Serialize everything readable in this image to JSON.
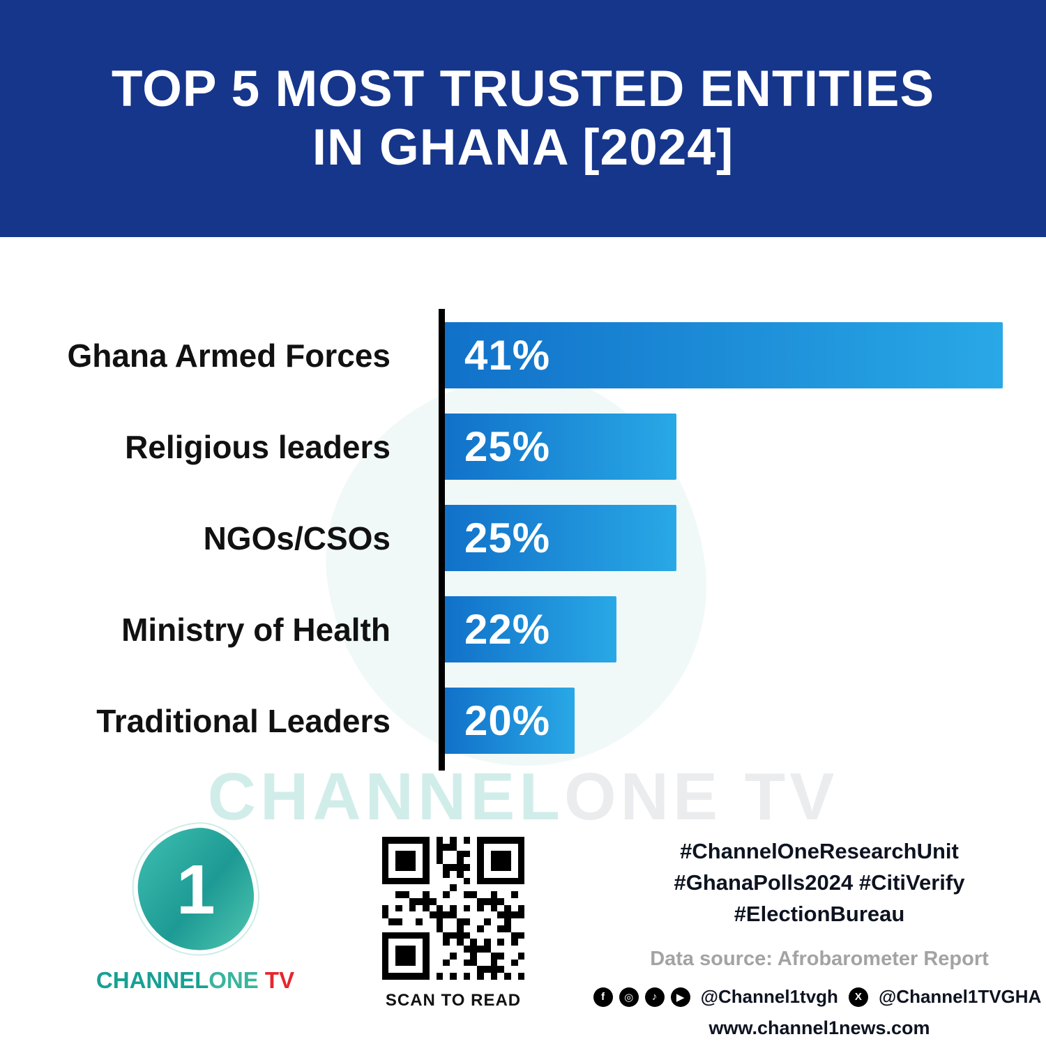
{
  "header": {
    "title_line1": "TOP 5 MOST TRUSTED ENTITIES",
    "title_line2": "IN GHANA [2024]"
  },
  "chart_data": {
    "type": "bar",
    "orientation": "horizontal",
    "title": "TOP 5 MOST TRUSTED ENTITIES IN GHANA [2024]",
    "categories": [
      "Ghana Armed Forces",
      "Religious leaders",
      "NGOs/CSOs",
      "Ministry of Health",
      "Traditional Leaders"
    ],
    "values": [
      41,
      25,
      25,
      22,
      20
    ],
    "value_labels": [
      "41%",
      "25%",
      "25%",
      "22%",
      "20%"
    ],
    "display_widths_pct": [
      100,
      41.5,
      41.5,
      30.7,
      23.3
    ],
    "bar_gradient": [
      "#1171c9",
      "#29a8e6"
    ],
    "xlabel": "",
    "ylabel": "",
    "grid": false,
    "legend": false,
    "axis_color": "#000000"
  },
  "watermark": {
    "part1": "CHANNEL",
    "part2": "ONE TV"
  },
  "footer": {
    "logo": {
      "numeral": "1",
      "word_channel": "CHANNEL",
      "word_one": "ONE",
      "word_tv": " TV"
    },
    "qr_caption": "SCAN TO READ",
    "hashtags": [
      "#ChannelOneResearchUnit",
      "#GhanaPolls2024 #CitiVerify",
      "#ElectionBureau"
    ],
    "data_source": "Data source: Afrobarometer Report",
    "social_icons": [
      {
        "name": "facebook-icon",
        "glyph": "f"
      },
      {
        "name": "instagram-icon",
        "glyph": "◎"
      },
      {
        "name": "tiktok-icon",
        "glyph": "♪"
      },
      {
        "name": "youtube-icon",
        "glyph": "▶"
      }
    ],
    "handle_1": "@Channel1tvgh",
    "x_icon_glyph": "X",
    "handle_2": "@Channel1TVGHA",
    "website": "www.channel1news.com"
  },
  "colors": {
    "header_bg": "#16368c",
    "bar_start": "#1171c9",
    "bar_end": "#29a8e6",
    "teal": "#17a094",
    "tv_red": "#e5262d"
  }
}
